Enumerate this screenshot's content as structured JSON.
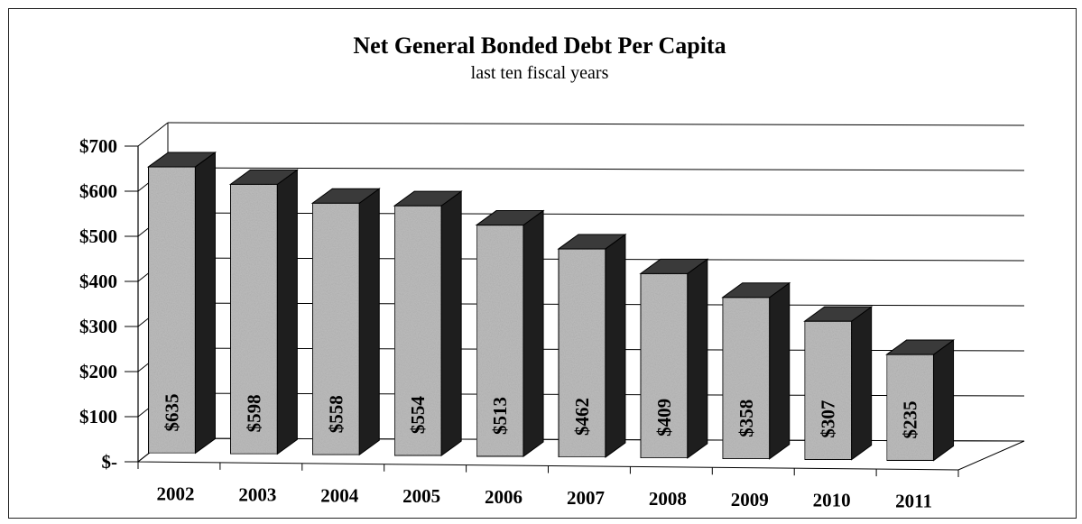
{
  "chart_data": {
    "type": "bar",
    "title": "Net General Bonded Debt Per Capita",
    "subtitle": "last ten fiscal years",
    "xlabel": "",
    "ylabel": "",
    "categories": [
      "2002",
      "2003",
      "2004",
      "2005",
      "2006",
      "2007",
      "2008",
      "2009",
      "2010",
      "2011"
    ],
    "values": [
      635,
      598,
      558,
      554,
      513,
      462,
      409,
      358,
      307,
      235
    ],
    "data_labels": [
      "$635",
      "$598",
      "$558",
      "$554",
      "$513",
      "$462",
      "$409",
      "$358",
      "$307",
      "$235"
    ],
    "y_ticks": [
      {
        "value": 0,
        "label": "$-"
      },
      {
        "value": 100,
        "label": "$100"
      },
      {
        "value": 200,
        "label": "$200"
      },
      {
        "value": 300,
        "label": "$300"
      },
      {
        "value": 400,
        "label": "$400"
      },
      {
        "value": 500,
        "label": "$500"
      },
      {
        "value": 600,
        "label": "$600"
      },
      {
        "value": 700,
        "label": "$700"
      }
    ],
    "ylim": [
      0,
      700
    ],
    "grid": true,
    "legend": "none",
    "style": "3d-bar",
    "colors": {
      "bar_front": "#bdbdbd",
      "bar_side": "#1e1e1e",
      "bar_top": "#3a3a3a",
      "grid": "#000000"
    }
  }
}
